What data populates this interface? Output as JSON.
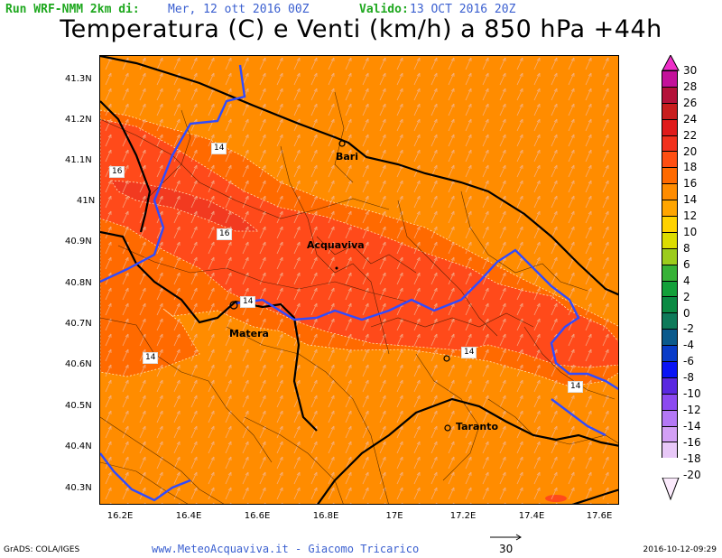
{
  "header": {
    "run_label": "Run WRF-NMM 2km di:",
    "run_date": "Mer, 12 ott 2016 00Z",
    "valid_label": "Valido:",
    "valid_date": "13 OCT 2016 20Z",
    "title": "Temperatura (C) e Venti (km/h) a 850 hPa +44h"
  },
  "map": {
    "lat_labels": [
      "41.3N",
      "41.2N",
      "41.1N",
      "41N",
      "40.9N",
      "40.8N",
      "40.7N",
      "40.6N",
      "40.5N",
      "40.4N",
      "40.3N"
    ],
    "lon_labels": [
      "16.2E",
      "16.4E",
      "16.6E",
      "16.8E",
      "17E",
      "17.2E",
      "17.4E",
      "17.6E"
    ],
    "cities": [
      "Bari",
      "Acquaviva",
      "Matera",
      "Taranto"
    ],
    "contour_labels": [
      "14",
      "16",
      "16",
      "14",
      "14",
      "14",
      "14"
    ],
    "colors": {
      "t12": "#ff8c00",
      "t14": "#ff6a00",
      "t16": "#ff4a1a",
      "t18": "#f23a20",
      "borders": "#000000",
      "regional_border": "#2f4bff",
      "wind": "#f2b494"
    }
  },
  "colorbar": {
    "labels": [
      "30",
      "28",
      "26",
      "24",
      "22",
      "20",
      "18",
      "16",
      "14",
      "12",
      "10",
      "8",
      "6",
      "4",
      "2",
      "0",
      "-2",
      "-4",
      "-6",
      "-8",
      "-10",
      "-12",
      "-14",
      "-16",
      "-18",
      "-20"
    ],
    "colors": [
      "#ee2ec8",
      "#c3119a",
      "#b4123a",
      "#c81e1e",
      "#e01b1b",
      "#f2311d",
      "#ff4f12",
      "#ff6a00",
      "#ff8c00",
      "#ffa500",
      "#ffd200",
      "#dcdc00",
      "#9ccc1c",
      "#37b237",
      "#13a03a",
      "#0b8a43",
      "#0e7a5a",
      "#0b5a8c",
      "#0a3cc8",
      "#0a14f5",
      "#5a28e0",
      "#8c4af0",
      "#b478f5",
      "#d3a0f5",
      "#e8c8f8",
      "#fbeafc"
    ]
  },
  "footer": {
    "grads": "GrADS: COLA/IGES",
    "credit": "www.MeteoAcquaviva.it - Giacomo Tricarico",
    "ref_value": "30",
    "date": "2016-10-12-09:29"
  }
}
